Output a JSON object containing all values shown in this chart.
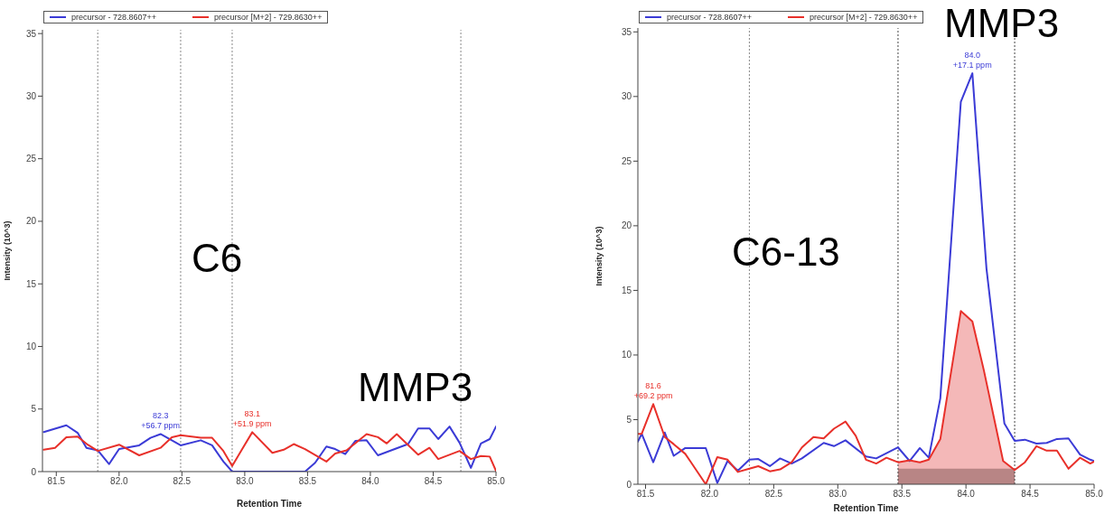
{
  "chart_data": [
    {
      "type": "line",
      "xlabel": "Retention Time",
      "ylabel": "Intensity (10^3)",
      "xlim": [
        81.39,
        85.0
      ],
      "ylim": [
        0,
        35.3
      ],
      "xticks": [
        {
          "value": 81.5,
          "label": "81.5"
        },
        {
          "value": 82,
          "label": "82.0"
        },
        {
          "value": 82.5,
          "label": "82.5"
        },
        {
          "value": 83,
          "label": "83.0"
        },
        {
          "value": 83.5,
          "label": "83.5"
        },
        {
          "value": 84,
          "label": "84.0"
        },
        {
          "value": 84.5,
          "label": "84.5"
        },
        {
          "value": 85,
          "label": "85.0"
        }
      ],
      "yticks": [
        0,
        5,
        10,
        15,
        20,
        25,
        30,
        35
      ],
      "legend": "top left",
      "series": [
        {
          "name": "precursor - 728.8607++",
          "color": "#3b3bd6",
          "x": [
            81.4,
            81.58,
            81.67,
            81.74,
            81.83,
            81.92,
            82.0,
            82.16,
            82.25,
            82.33,
            82.49,
            82.65,
            82.74,
            82.83,
            82.9,
            83.48,
            83.56,
            83.65,
            83.72,
            83.8,
            83.88,
            83.97,
            84.06,
            84.3,
            84.38,
            84.47,
            84.54,
            84.63,
            84.71,
            84.8,
            84.88,
            84.95,
            85.0
          ],
          "values": [
            3.16,
            3.7,
            3.1,
            1.9,
            1.7,
            0.6,
            1.8,
            2.1,
            2.7,
            3.0,
            2.1,
            2.5,
            2.1,
            0.8,
            0,
            0,
            0.7,
            2.0,
            1.8,
            1.4,
            2.45,
            2.5,
            1.3,
            2.2,
            3.45,
            3.45,
            2.6,
            3.6,
            2.3,
            0.3,
            2.25,
            2.6,
            3.6
          ]
        },
        {
          "name": "precursor [M+2] - 729.8630++",
          "color": "#e8302a",
          "x": [
            81.4,
            81.49,
            81.58,
            81.67,
            81.75,
            81.83,
            82.0,
            82.16,
            82.33,
            82.42,
            82.49,
            82.65,
            82.74,
            82.83,
            82.9,
            82.98,
            83.06,
            83.22,
            83.31,
            83.39,
            83.48,
            83.65,
            83.72,
            83.81,
            83.97,
            84.06,
            84.13,
            84.21,
            84.38,
            84.47,
            84.54,
            84.71,
            84.8,
            84.88,
            84.95,
            85.0
          ],
          "values": [
            1.75,
            1.9,
            2.75,
            2.8,
            2.15,
            1.65,
            2.15,
            1.3,
            1.9,
            2.75,
            2.9,
            2.7,
            2.7,
            1.65,
            0.45,
            1.8,
            3.15,
            1.5,
            1.75,
            2.2,
            1.8,
            0.8,
            1.45,
            1.7,
            3.0,
            2.75,
            2.25,
            3.0,
            1.35,
            1.9,
            1.0,
            1.65,
            1.0,
            1.25,
            1.2,
            0.05
          ]
        }
      ],
      "ref_lines": [
        {
          "axis": "x",
          "value": 81.83,
          "line_style": "dotted",
          "color": "#888888"
        },
        {
          "axis": "x",
          "value": 82.49,
          "line_style": "dotted",
          "color": "#888888"
        },
        {
          "axis": "x",
          "value": 82.9,
          "line_style": "dotted",
          "color": "#888888"
        },
        {
          "axis": "x",
          "value": 84.72,
          "line_style": "dotted",
          "color": "#888888"
        }
      ],
      "annotations": [
        "C6",
        "MMP3",
        {
          "text": "82.3\n+56.7 ppm",
          "x": 82.33,
          "y": 3.0
        },
        {
          "text": "83.1\n+51.9 ppm",
          "x": 83.06,
          "y": 3.15
        }
      ]
    },
    {
      "type": "line",
      "xlabel": "Retention Time",
      "ylabel": "Intensity (10^3)",
      "xlim": [
        81.44,
        85.0
      ],
      "ylim": [
        0,
        35.3
      ],
      "xticks": [
        {
          "value": 81.5,
          "label": "81.5"
        },
        {
          "value": 82,
          "label": "82.0"
        },
        {
          "value": 82.5,
          "label": "82.5"
        },
        {
          "value": 83,
          "label": "83.0"
        },
        {
          "value": 83.5,
          "label": "83.5"
        },
        {
          "value": 84,
          "label": "84.0"
        },
        {
          "value": 84.5,
          "label": "84.5"
        },
        {
          "value": 85,
          "label": "85.0"
        }
      ],
      "yticks": [
        0,
        5,
        10,
        15,
        20,
        25,
        30,
        35
      ],
      "legend": "top left",
      "series": [
        {
          "type": "area",
          "color": "#f4b8b8",
          "x": [
            83.47,
            83.56,
            83.64,
            83.71,
            83.8,
            83.96,
            84.05,
            84.14,
            84.29,
            84.38
          ],
          "values": [
            1.7,
            1.85,
            1.7,
            1.9,
            3.5,
            13.4,
            12.6,
            8.8,
            1.8,
            1.1
          ]
        },
        {
          "type": "area",
          "color": "#b88585",
          "x": [
            83.47,
            84.38
          ],
          "values": [
            1.2,
            1.2
          ]
        },
        {
          "name": "precursor - 728.8607++",
          "color": "#3b3bd6",
          "x": [
            81.44,
            81.47,
            81.56,
            81.65,
            81.72,
            81.81,
            81.97,
            82.06,
            82.14,
            82.22,
            82.31,
            82.38,
            82.47,
            82.55,
            82.64,
            82.72,
            82.89,
            82.97,
            83.06,
            83.22,
            83.3,
            83.47,
            83.56,
            83.64,
            83.71,
            83.8,
            83.96,
            84.05,
            84.16,
            84.3,
            84.38,
            84.46,
            84.55,
            84.63,
            84.71,
            84.8,
            84.89,
            84.97,
            85.0
          ],
          "values": [
            3.3,
            3.9,
            1.7,
            4.0,
            2.2,
            2.8,
            2.8,
            0.1,
            1.8,
            1.05,
            1.9,
            1.95,
            1.4,
            2.0,
            1.6,
            2.0,
            3.2,
            2.95,
            3.4,
            2.15,
            2.0,
            2.85,
            1.8,
            2.8,
            2.05,
            6.65,
            29.6,
            31.8,
            16.7,
            4.7,
            3.35,
            3.45,
            3.15,
            3.2,
            3.5,
            3.55,
            2.3,
            1.9,
            1.8
          ]
        },
        {
          "name": "precursor [M+2] - 729.8630++",
          "color": "#e8302a",
          "x": [
            81.44,
            81.47,
            81.56,
            81.65,
            81.72,
            81.81,
            81.97,
            82.06,
            82.14,
            82.22,
            82.31,
            82.38,
            82.47,
            82.55,
            82.64,
            82.72,
            82.81,
            82.89,
            82.97,
            83.06,
            83.14,
            83.22,
            83.3,
            83.38,
            83.47,
            83.56,
            83.64,
            83.71,
            83.8,
            83.96,
            84.05,
            84.14,
            84.29,
            84.38,
            84.46,
            84.55,
            84.63,
            84.71,
            84.8,
            84.89,
            84.97,
            85.0
          ],
          "values": [
            3.9,
            3.9,
            6.2,
            3.65,
            3.1,
            2.35,
            0,
            2.1,
            1.9,
            0.95,
            1.2,
            1.4,
            1.0,
            1.15,
            1.7,
            2.85,
            3.65,
            3.55,
            4.3,
            4.85,
            3.75,
            1.9,
            1.6,
            2.05,
            1.7,
            1.85,
            1.7,
            1.9,
            3.5,
            13.4,
            12.6,
            8.8,
            1.8,
            1.1,
            1.7,
            2.95,
            2.6,
            2.6,
            1.2,
            2.05,
            1.6,
            1.75
          ]
        }
      ],
      "ref_lines": [
        {
          "axis": "x",
          "value": 82.31,
          "line_style": "dotted",
          "color": "#888888"
        },
        {
          "axis": "x",
          "value": 83.47,
          "line_style": "dotted",
          "color": "#444444"
        },
        {
          "axis": "x",
          "value": 84.38,
          "line_style": "dotted",
          "color": "#444444"
        }
      ],
      "annotations": [
        "C6-13",
        "MMP3",
        {
          "text": "84.0\n+17.1 ppm",
          "x": 84.05,
          "y": 31.8
        },
        {
          "text": "81.6\n+69.2 ppm",
          "x": 81.56,
          "y": 6.2
        }
      ]
    }
  ]
}
